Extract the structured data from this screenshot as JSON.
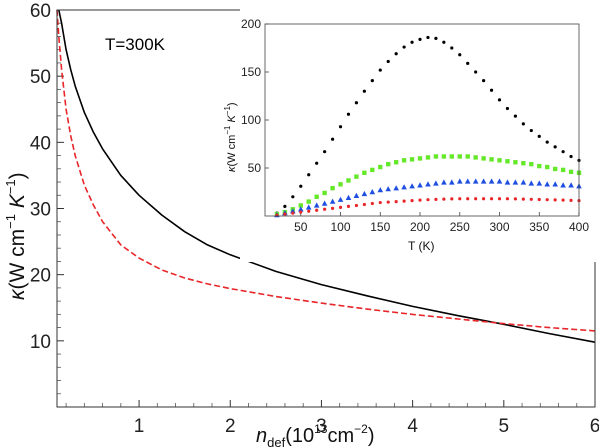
{
  "chart_data": [
    {
      "type": "line",
      "annotation": "T=300K",
      "xlabel_main": "n",
      "xlabel_sub": "def",
      "xlabel_rest": "(10",
      "xlabel_exp": "13",
      "xlabel_unit": "cm",
      "xlabel_unit_exp": "−2",
      "xlabel_close": ")",
      "ylabel_sym": "κ",
      "ylabel_open": "(W cm",
      "ylabel_exp1": "−1",
      "ylabel_k": " K",
      "ylabel_exp2": "−1",
      "ylabel_close": ")",
      "xlim": [
        0.1,
        6
      ],
      "ylim": [
        0,
        60
      ],
      "xticks": [
        1,
        2,
        3,
        4,
        5,
        6
      ],
      "yticks": [
        10,
        20,
        30,
        40,
        50,
        60
      ],
      "series": [
        {
          "style": "solid",
          "color": "#000000",
          "x": [
            0.12,
            0.15,
            0.2,
            0.25,
            0.3,
            0.4,
            0.5,
            0.6,
            0.8,
            1.0,
            1.25,
            1.5,
            1.75,
            2.0,
            2.5,
            3.0,
            3.5,
            4.0,
            4.5,
            5.0,
            5.5,
            6.0
          ],
          "y": [
            60,
            58,
            54,
            51,
            48.5,
            44.5,
            41.5,
            39,
            35,
            32,
            29,
            26.5,
            24.5,
            23,
            20.5,
            18.5,
            16.8,
            15.2,
            13.8,
            12.5,
            11.1,
            9.8
          ]
        },
        {
          "style": "dashed",
          "color": "#e8262a",
          "x": [
            0.1,
            0.12,
            0.15,
            0.2,
            0.25,
            0.3,
            0.4,
            0.5,
            0.6,
            0.8,
            1.0,
            1.25,
            1.5,
            1.75,
            2.0,
            2.5,
            3.0,
            3.5,
            4.0,
            4.5,
            5.0,
            5.5,
            6.0
          ],
          "y": [
            60,
            56,
            51,
            45,
            41,
            38,
            33.5,
            30.5,
            28,
            24.5,
            22.5,
            20.7,
            19.5,
            18.6,
            17.9,
            16.7,
            15.7,
            14.8,
            14.0,
            13.3,
            12.6,
            12.0,
            11.5
          ]
        }
      ]
    },
    {
      "type": "scatter",
      "xlabel": "T (K)",
      "ylabel_sym": "κ",
      "ylabel_open": "(W cm",
      "ylabel_exp1": "−1",
      "ylabel_k": " K",
      "ylabel_exp2": "−1",
      "ylabel_close": ")",
      "xlim": [
        5,
        400
      ],
      "ylim": [
        0,
        200
      ],
      "xticks": [
        50,
        100,
        150,
        200,
        250,
        300,
        350,
        400
      ],
      "yticks": [
        50,
        100,
        150,
        200
      ],
      "series": [
        {
          "marker": "circle",
          "color": "#000000",
          "x": [
            20,
            30,
            40,
            50,
            60,
            70,
            80,
            90,
            100,
            110,
            120,
            130,
            140,
            150,
            160,
            170,
            180,
            190,
            200,
            210,
            220,
            230,
            240,
            250,
            260,
            270,
            280,
            290,
            300,
            310,
            320,
            330,
            340,
            350,
            360,
            370,
            380,
            390,
            400
          ],
          "y": [
            3,
            10,
            20,
            31,
            43,
            55,
            67,
            80,
            93,
            106,
            118,
            130,
            141,
            152,
            161,
            169,
            176,
            181,
            184,
            186,
            185,
            181,
            175,
            168,
            159,
            150,
            141,
            131,
            121,
            112,
            104,
            96,
            89,
            83,
            77,
            72,
            67,
            62,
            58
          ]
        },
        {
          "marker": "square",
          "color": "#66e82a",
          "x": [
            20,
            30,
            40,
            50,
            60,
            70,
            80,
            90,
            100,
            110,
            120,
            130,
            140,
            150,
            160,
            170,
            180,
            190,
            200,
            210,
            220,
            230,
            240,
            250,
            260,
            270,
            280,
            290,
            300,
            310,
            320,
            330,
            340,
            350,
            360,
            370,
            380,
            390,
            400
          ],
          "y": [
            2,
            4,
            7,
            11,
            15,
            20,
            24,
            29,
            33,
            37,
            41,
            45,
            48,
            51,
            54,
            56,
            58,
            59,
            60,
            61,
            62,
            62,
            62,
            62,
            62,
            61,
            60,
            59,
            58,
            57,
            56,
            55,
            54,
            52,
            51,
            49,
            48,
            46,
            45
          ]
        },
        {
          "marker": "triangle",
          "color": "#1e4fe0",
          "x": [
            20,
            30,
            40,
            50,
            60,
            70,
            80,
            90,
            100,
            110,
            120,
            130,
            140,
            150,
            160,
            170,
            180,
            190,
            200,
            210,
            220,
            230,
            240,
            250,
            260,
            270,
            280,
            290,
            300,
            310,
            320,
            330,
            340,
            350,
            360,
            370,
            380,
            390,
            400
          ],
          "y": [
            1,
            3,
            5,
            7,
            9,
            11,
            13,
            15,
            17,
            19,
            21,
            23,
            25,
            27,
            28,
            29,
            30,
            31,
            32,
            33,
            34,
            35,
            35,
            36,
            36,
            36,
            36,
            36,
            36,
            35,
            35,
            35,
            34,
            34,
            33,
            33,
            32,
            32,
            31
          ]
        },
        {
          "marker": "circle",
          "color": "#e8262a",
          "x": [
            20,
            30,
            40,
            50,
            60,
            70,
            80,
            90,
            100,
            110,
            120,
            130,
            140,
            150,
            160,
            170,
            180,
            190,
            200,
            210,
            220,
            230,
            240,
            250,
            260,
            270,
            280,
            290,
            300,
            310,
            320,
            330,
            340,
            350,
            360,
            370,
            380,
            390,
            400
          ],
          "y": [
            1,
            2,
            3,
            4,
            5,
            6,
            7,
            8,
            9,
            10,
            11,
            12,
            13,
            14,
            14.5,
            15,
            15.5,
            16,
            16.5,
            17,
            17.3,
            17.6,
            17.8,
            18,
            18,
            18,
            18,
            18,
            18,
            18,
            17.8,
            17.6,
            17.4,
            17.2,
            17,
            16.8,
            16.6,
            16.3,
            16
          ]
        }
      ]
    }
  ]
}
